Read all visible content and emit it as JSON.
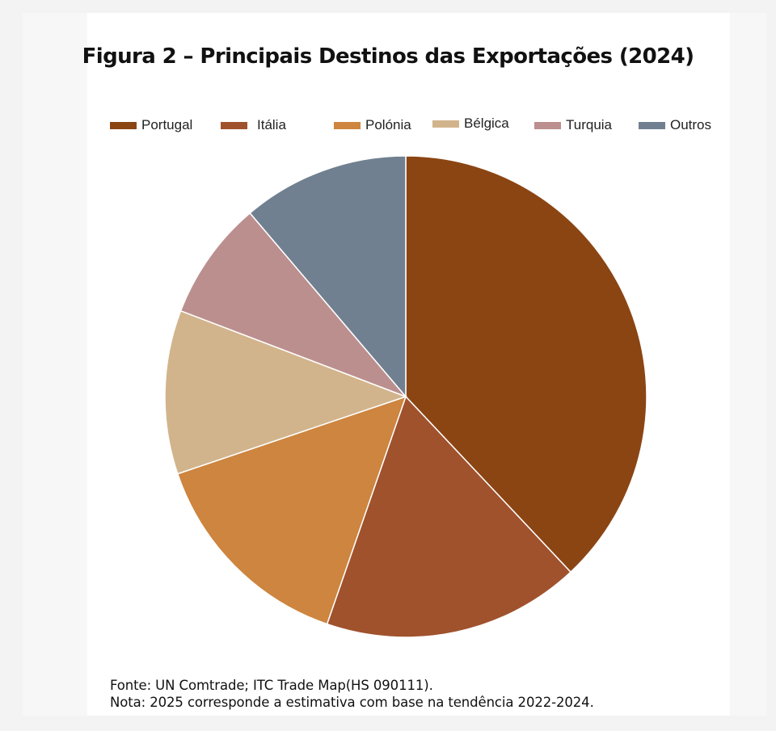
{
  "chart_data": {
    "type": "pie",
    "title": "Figura 2 – Principais Destinos das Exportações (2024)",
    "categories": [
      "Portugal",
      "Itália",
      "Polónia",
      "Bélgica",
      "Turquia",
      "Outros"
    ],
    "values": [
      38.0,
      17.3,
      14.5,
      11.0,
      8.0,
      11.2
    ],
    "unit": "%",
    "start_angle": "12 o'clock",
    "direction": "clockwise",
    "legend_position": "top",
    "colors": [
      "#8b4513",
      "#a0522d",
      "#cd853f",
      "#d2b48c",
      "#bc8f8f",
      "#708090"
    ]
  },
  "footer": {
    "source": "Fonte: UN Comtrade; ITC Trade Map(HS 090111).",
    "note": "Nota: 2025 corresponde a estimativa com base na tendência 2022-2024."
  }
}
